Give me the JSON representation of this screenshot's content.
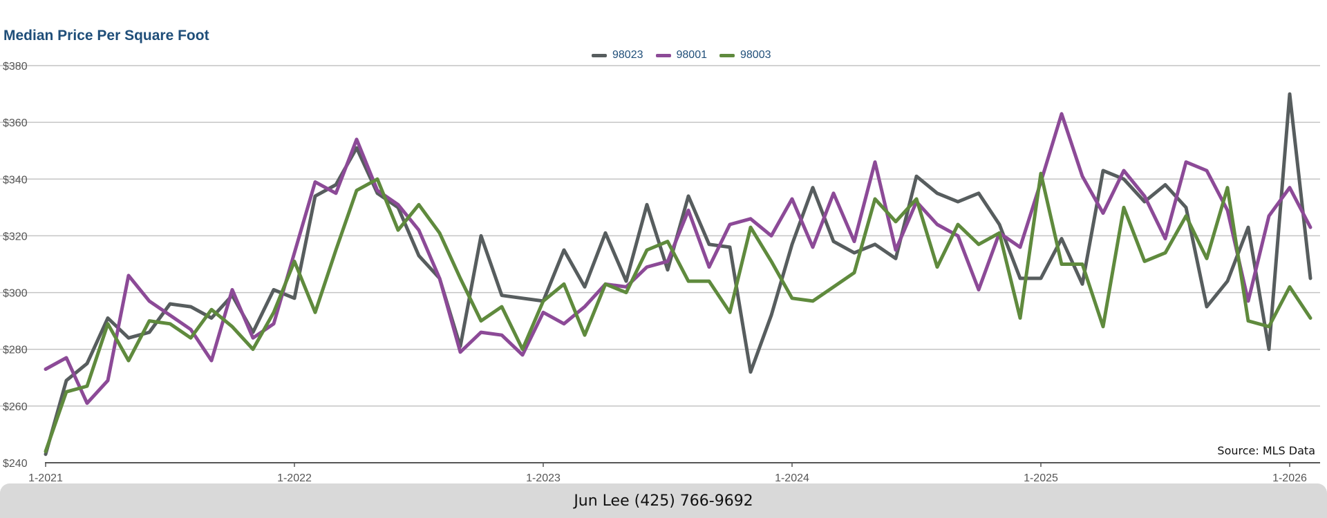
{
  "chart_data": {
    "type": "line",
    "title": "Median Price Per Square Foot",
    "ylim": [
      240,
      380
    ],
    "y_ticks": [
      240,
      260,
      280,
      300,
      320,
      340,
      360,
      380
    ],
    "y_tick_labels": [
      "$240",
      "$260",
      "$280",
      "$300",
      "$320",
      "$340",
      "$360",
      "$380"
    ],
    "x_ticks": [
      "1-2021",
      "1-2022",
      "1-2023",
      "1-2024",
      "1-2025",
      "1-2026"
    ],
    "x_tick_positions": [
      0,
      12,
      24,
      36,
      48,
      60
    ],
    "grid": true,
    "legend_position": "top-center",
    "annotation": "Source: MLS Data",
    "series": [
      {
        "name": "98023",
        "color": "#575d5e",
        "values": [
          243,
          269,
          275,
          291,
          284,
          286,
          296,
          295,
          291,
          299,
          286,
          301,
          298,
          334,
          338,
          351,
          335,
          330,
          313,
          305,
          281,
          320,
          299,
          298,
          297,
          315,
          302,
          321,
          304,
          331,
          308,
          334,
          317,
          316,
          272,
          292,
          317,
          337,
          318,
          314,
          317,
          312,
          341,
          335,
          332,
          335,
          324,
          305,
          305,
          319,
          303,
          343,
          340,
          332,
          338,
          330,
          295,
          304,
          323,
          280,
          370,
          305
        ]
      },
      {
        "name": "98001",
        "color": "#8c4a97",
        "values": [
          273,
          277,
          261,
          269,
          306,
          297,
          292,
          287,
          276,
          301,
          284,
          289,
          314,
          339,
          335,
          354,
          336,
          331,
          322,
          305,
          279,
          286,
          285,
          278,
          293,
          289,
          295,
          303,
          302,
          309,
          311,
          329,
          309,
          324,
          326,
          320,
          333,
          316,
          335,
          318,
          346,
          315,
          332,
          324,
          320,
          301,
          321,
          316,
          339,
          363,
          341,
          328,
          343,
          334,
          319,
          346,
          343,
          329,
          297,
          327,
          337,
          323
        ]
      },
      {
        "name": "98003",
        "color": "#5f8a3d",
        "values": [
          244,
          265,
          267,
          289,
          276,
          290,
          289,
          284,
          294,
          288,
          280,
          293,
          311,
          293,
          315,
          336,
          340,
          322,
          331,
          321,
          305,
          290,
          295,
          280,
          297,
          303,
          285,
          303,
          300,
          315,
          318,
          304,
          304,
          293,
          323,
          311,
          298,
          297,
          302,
          307,
          333,
          325,
          333,
          309,
          324,
          317,
          321,
          291,
          342,
          310,
          310,
          288,
          330,
          311,
          314,
          327,
          312,
          337,
          290,
          288,
          302,
          291
        ]
      }
    ]
  },
  "footer": {
    "text": "Jun Lee (425) 766-9692"
  }
}
